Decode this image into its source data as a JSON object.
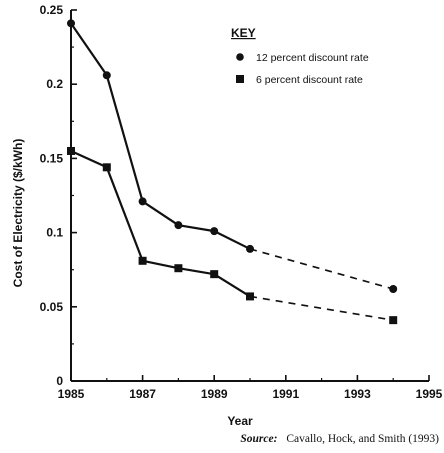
{
  "chart_data": {
    "type": "line",
    "xlabel": "Year",
    "ylabel": "Cost of Electricity ($/kWh)",
    "xlim": [
      1985,
      1995
    ],
    "ylim": [
      0,
      0.25
    ],
    "x_ticks": [
      "1985",
      "1987",
      "1989",
      "1991",
      "1993",
      "1995"
    ],
    "y_ticks": [
      "0",
      "0.05",
      "0.1",
      "0.15",
      "0.2",
      "0.25"
    ],
    "legend_title": "KEY",
    "legend_position": "top-right",
    "series": [
      {
        "name": "12 percent discount rate",
        "marker": "circle",
        "color": "#111111",
        "points": [
          [
            1985,
            0.241
          ],
          [
            1986,
            0.206
          ],
          [
            1987,
            0.121
          ],
          [
            1988,
            0.105
          ],
          [
            1989,
            0.101
          ],
          [
            1990,
            0.089
          ]
        ],
        "projected": [
          [
            1990,
            0.089
          ],
          [
            1994,
            0.062
          ]
        ]
      },
      {
        "name": "6 percent discount rate",
        "marker": "square",
        "color": "#111111",
        "points": [
          [
            1985,
            0.155
          ],
          [
            1986,
            0.144
          ],
          [
            1987,
            0.081
          ],
          [
            1988,
            0.076
          ],
          [
            1989,
            0.072
          ],
          [
            1990,
            0.057
          ]
        ],
        "projected": [
          [
            1990,
            0.057
          ],
          [
            1994,
            0.041
          ]
        ]
      }
    ],
    "source_label": "Source:",
    "source_text": "Cavallo, Hock, and Smith (1993)"
  }
}
